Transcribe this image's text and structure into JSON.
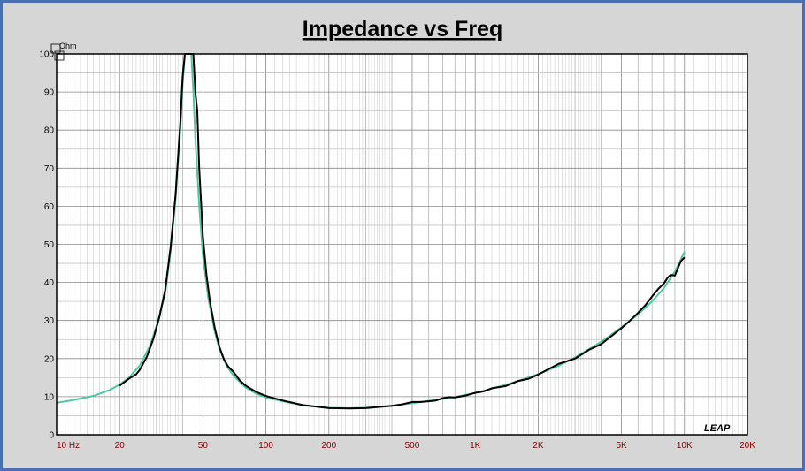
{
  "chart_data": {
    "type": "line",
    "title": "Impedance vs Freq",
    "y_unit": "Ohm",
    "logo": "LEAP",
    "xscale": "log",
    "xlim": [
      10,
      20000
    ],
    "ylim": [
      0,
      100
    ],
    "grid": true,
    "x_ticks": [
      {
        "value": 10,
        "label": "10  Hz"
      },
      {
        "value": 20,
        "label": "20"
      },
      {
        "value": 50,
        "label": "50"
      },
      {
        "value": 100,
        "label": "100"
      },
      {
        "value": 200,
        "label": "200"
      },
      {
        "value": 500,
        "label": "500"
      },
      {
        "value": 1000,
        "label": "1K"
      },
      {
        "value": 2000,
        "label": "2K"
      },
      {
        "value": 5000,
        "label": "5K"
      },
      {
        "value": 10000,
        "label": "10K"
      },
      {
        "value": 20000,
        "label": "20K"
      }
    ],
    "y_ticks": [
      {
        "value": 0,
        "label": "0"
      },
      {
        "value": 10,
        "label": "10"
      },
      {
        "value": 20,
        "label": "20"
      },
      {
        "value": 30,
        "label": "30"
      },
      {
        "value": 40,
        "label": "40"
      },
      {
        "value": 50,
        "label": "50"
      },
      {
        "value": 60,
        "label": "60"
      },
      {
        "value": 70,
        "label": "70"
      },
      {
        "value": 80,
        "label": "80"
      },
      {
        "value": 90,
        "label": "90"
      },
      {
        "value": 100,
        "label": "100"
      }
    ],
    "series": [
      {
        "color": "#4fc7a4",
        "width": 2,
        "points": [
          [
            10,
            8.4
          ],
          [
            12,
            9.1
          ],
          [
            15,
            10.2
          ],
          [
            18,
            11.8
          ],
          [
            20,
            13.2
          ],
          [
            22,
            14.8
          ],
          [
            25,
            18.2
          ],
          [
            28,
            23.5
          ],
          [
            30,
            28.5
          ],
          [
            33,
            37
          ],
          [
            35,
            48
          ],
          [
            37,
            62
          ],
          [
            39,
            80
          ],
          [
            40,
            92
          ],
          [
            41,
            100
          ],
          [
            44,
            100
          ],
          [
            45,
            90
          ],
          [
            46,
            78
          ],
          [
            48,
            60
          ],
          [
            50,
            47
          ],
          [
            53,
            36
          ],
          [
            57,
            27
          ],
          [
            60,
            22.5
          ],
          [
            65,
            18
          ],
          [
            70,
            15.5
          ],
          [
            80,
            12.4
          ],
          [
            90,
            10.8
          ],
          [
            100,
            9.8
          ],
          [
            120,
            8.8
          ],
          [
            150,
            7.7
          ],
          [
            200,
            7.1
          ],
          [
            250,
            6.95
          ],
          [
            300,
            7.1
          ],
          [
            400,
            7.6
          ],
          [
            500,
            8.3
          ],
          [
            600,
            8.9
          ],
          [
            700,
            9.4
          ],
          [
            800,
            9.9
          ],
          [
            1000,
            11
          ],
          [
            1200,
            12.1
          ],
          [
            1500,
            13.6
          ],
          [
            2000,
            15.9
          ],
          [
            2500,
            18.1
          ],
          [
            3000,
            20.3
          ],
          [
            4000,
            24.4
          ],
          [
            5000,
            28.2
          ],
          [
            6000,
            31.6
          ],
          [
            7000,
            35
          ],
          [
            8000,
            38.6
          ],
          [
            9000,
            42.8
          ],
          [
            10000,
            48
          ]
        ]
      },
      {
        "color": "#000000",
        "width": 2,
        "points": [
          [
            20,
            12.9
          ],
          [
            22,
            14.6
          ],
          [
            24,
            15.9
          ],
          [
            25,
            17.1
          ],
          [
            27,
            20.5
          ],
          [
            29,
            25.2
          ],
          [
            31,
            31
          ],
          [
            33,
            38
          ],
          [
            35,
            49
          ],
          [
            37,
            63
          ],
          [
            39,
            82
          ],
          [
            40,
            94
          ],
          [
            41,
            100
          ],
          [
            45,
            100
          ],
          [
            46,
            90
          ],
          [
            47,
            85
          ],
          [
            48,
            70
          ],
          [
            50,
            52
          ],
          [
            52,
            42
          ],
          [
            54,
            35
          ],
          [
            57,
            28
          ],
          [
            60,
            23
          ],
          [
            63,
            19.8
          ],
          [
            66,
            17.9
          ],
          [
            70,
            16.5
          ],
          [
            75,
            14.3
          ],
          [
            80,
            12.9
          ],
          [
            90,
            11.2
          ],
          [
            100,
            10.2
          ],
          [
            120,
            9
          ],
          [
            150,
            7.8
          ],
          [
            200,
            7
          ],
          [
            250,
            6.9
          ],
          [
            300,
            7
          ],
          [
            330,
            7.2
          ],
          [
            400,
            7.6
          ],
          [
            450,
            8
          ],
          [
            500,
            8.6
          ],
          [
            550,
            8.6
          ],
          [
            600,
            8.8
          ],
          [
            650,
            9
          ],
          [
            700,
            9.6
          ],
          [
            750,
            9.9
          ],
          [
            800,
            9.8
          ],
          [
            900,
            10.3
          ],
          [
            1000,
            11
          ],
          [
            1100,
            11.4
          ],
          [
            1200,
            12.2
          ],
          [
            1400,
            12.8
          ],
          [
            1600,
            14.1
          ],
          [
            1800,
            14.7
          ],
          [
            2000,
            15.8
          ],
          [
            2200,
            17
          ],
          [
            2500,
            18.6
          ],
          [
            3000,
            20
          ],
          [
            3500,
            22.3
          ],
          [
            4000,
            23.8
          ],
          [
            4500,
            26
          ],
          [
            5000,
            28
          ],
          [
            5500,
            30
          ],
          [
            6000,
            32
          ],
          [
            6500,
            34
          ],
          [
            7000,
            36.3
          ],
          [
            7500,
            38.3
          ],
          [
            8000,
            39.8
          ],
          [
            8300,
            41.2
          ],
          [
            8600,
            42
          ],
          [
            9000,
            41.8
          ],
          [
            9300,
            43.7
          ],
          [
            9600,
            45.5
          ],
          [
            10000,
            46.6
          ]
        ]
      }
    ]
  }
}
